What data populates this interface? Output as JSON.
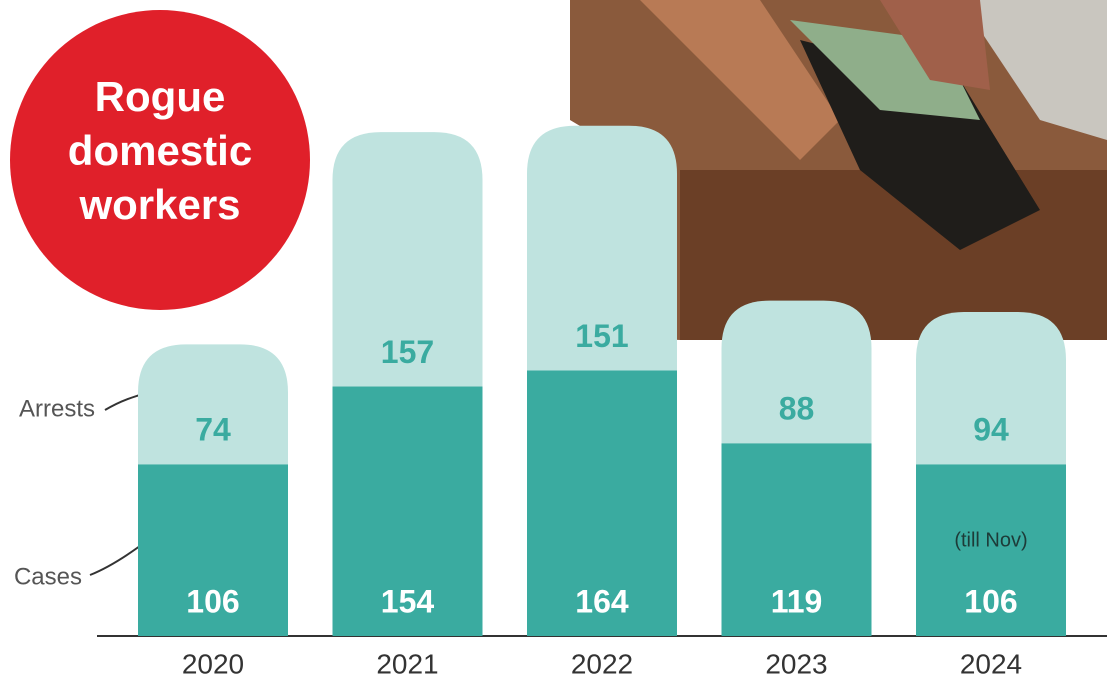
{
  "chart_data": {
    "type": "stacked-bar",
    "title": "Rogue domestic workers",
    "categories": [
      "2020",
      "2021",
      "2022",
      "2023",
      "2024"
    ],
    "series": [
      {
        "name": "Cases",
        "color": "#3aaba0",
        "values": [
          106,
          154,
          164,
          119,
          106
        ]
      },
      {
        "name": "Arrests",
        "color": "#bfe3df",
        "values": [
          74,
          157,
          151,
          88,
          94
        ]
      }
    ],
    "annotation": "(till Nov)"
  }
}
